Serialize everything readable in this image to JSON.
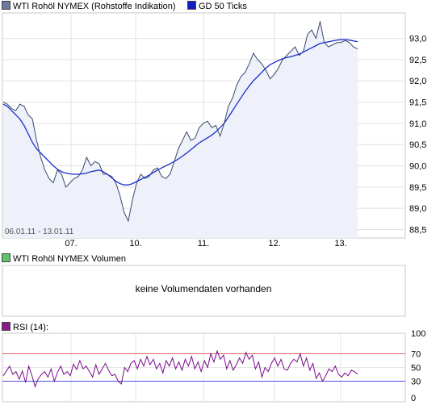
{
  "legend": {
    "price_label": "WTI Rohöl NYMEX (Rohstoffe Indikation)",
    "ma_label": "GD 50 Ticks",
    "volume_label": "WTI Rohöl NYMEX Volumen",
    "rsi_label": "RSI (14):"
  },
  "colors": {
    "price_line": "#3a4a6e",
    "price_fill": "#eef0fa",
    "ma_line": "#1a2fc8",
    "rsi_line": "#7a0a8c",
    "rsi_upper": "#e06060",
    "rsi_lower": "#5050e0",
    "volume_swatch": "#5ec46a",
    "rsi_swatch": "#8a1a8a",
    "price_swatch": "#6a7aa0",
    "ma_swatch": "#1020c0"
  },
  "volume_message": "keine Volumendaten vorhanden",
  "date_range": "06.01.11 - 13.01.11",
  "chart_data": [
    {
      "type": "line",
      "name": "price",
      "x_ticks": [
        "07.",
        "10.",
        "11.",
        "12.",
        "13."
      ],
      "y_ticks": [
        "88,5",
        "89,0",
        "89,5",
        "90,0",
        "90,5",
        "91,0",
        "91,5",
        "92,0",
        "92,5",
        "93,0"
      ],
      "ylim": [
        88.3,
        93.6
      ],
      "grid": true,
      "series": [
        {
          "name": "WTI Rohöl NYMEX (Rohstoffe Indikation)",
          "values": [
            91.5,
            91.45,
            91.35,
            91.3,
            91.45,
            91.4,
            91.2,
            91.1,
            90.6,
            90.2,
            89.9,
            89.7,
            89.6,
            89.9,
            89.8,
            89.5,
            89.6,
            89.7,
            89.75,
            89.9,
            90.2,
            90.0,
            90.1,
            90.05,
            89.8,
            89.8,
            89.75,
            89.6,
            89.3,
            88.9,
            88.7,
            89.2,
            89.6,
            89.8,
            89.7,
            89.75,
            89.9,
            89.95,
            89.75,
            89.7,
            89.8,
            90.1,
            90.4,
            90.6,
            90.8,
            90.6,
            90.65,
            90.9,
            91.0,
            91.05,
            90.9,
            90.95,
            90.7,
            91.0,
            91.4,
            91.6,
            91.9,
            92.1,
            92.2,
            92.4,
            92.65,
            92.5,
            92.4,
            92.25,
            92.05,
            92.15,
            92.3,
            92.5,
            92.6,
            92.7,
            92.8,
            92.6,
            92.7,
            93.1,
            93.2,
            93.0,
            93.4,
            92.9,
            92.8,
            92.85,
            92.9,
            92.9,
            92.95,
            92.9,
            92.8,
            92.75
          ]
        },
        {
          "name": "GD 50 Ticks",
          "values": [
            91.45,
            91.4,
            91.3,
            91.2,
            91.1,
            90.95,
            90.75,
            90.55,
            90.4,
            90.3,
            90.2,
            90.1,
            90.0,
            89.92,
            89.86,
            89.83,
            89.81,
            89.8,
            89.8,
            89.81,
            89.83,
            89.86,
            89.88,
            89.9,
            89.86,
            89.8,
            89.72,
            89.64,
            89.58,
            89.55,
            89.55,
            89.58,
            89.63,
            89.68,
            89.73,
            89.78,
            89.84,
            89.9,
            89.95,
            90.0,
            90.05,
            90.1,
            90.16,
            90.23,
            90.3,
            90.38,
            90.46,
            90.54,
            90.6,
            90.66,
            90.72,
            90.8,
            90.9,
            91.0,
            91.15,
            91.3,
            91.45,
            91.6,
            91.75,
            91.88,
            92.0,
            92.1,
            92.2,
            92.3,
            92.38,
            92.43,
            92.48,
            92.52,
            92.55,
            92.57,
            92.6,
            92.63,
            92.68,
            92.73,
            92.78,
            92.83,
            92.88,
            92.9,
            92.92,
            92.94,
            92.96,
            92.97,
            92.97,
            92.96,
            92.94,
            92.92
          ]
        }
      ]
    },
    {
      "type": "line",
      "name": "rsi",
      "y_ticks": [
        "0",
        "30",
        "50",
        "70",
        "100"
      ],
      "ylim": [
        0,
        100
      ],
      "reference_lines": [
        30,
        70
      ],
      "series": [
        {
          "name": "RSI (14):",
          "values": [
            38,
            45,
            52,
            40,
            44,
            33,
            45,
            28,
            52,
            38,
            22,
            34,
            40,
            44,
            36,
            48,
            30,
            43,
            52,
            40,
            44,
            38,
            55,
            47,
            60,
            48,
            52,
            44,
            36,
            54,
            40,
            48,
            56,
            46,
            38,
            40,
            30,
            26,
            50,
            44,
            56,
            60,
            48,
            62,
            52,
            66,
            54,
            62,
            48,
            56,
            42,
            60,
            52,
            64,
            48,
            58,
            46,
            62,
            52,
            66,
            48,
            58,
            44,
            60,
            50,
            70,
            58,
            74,
            62,
            68,
            48,
            60,
            46,
            54,
            64,
            56,
            72,
            62,
            68,
            48,
            58,
            36,
            50,
            44,
            56,
            64,
            52,
            62,
            48,
            46,
            56,
            62,
            58,
            70,
            52,
            64,
            46,
            56,
            34,
            42,
            30,
            38,
            48,
            44,
            52,
            40,
            36,
            42,
            38,
            46,
            44,
            40
          ]
        }
      ]
    }
  ]
}
